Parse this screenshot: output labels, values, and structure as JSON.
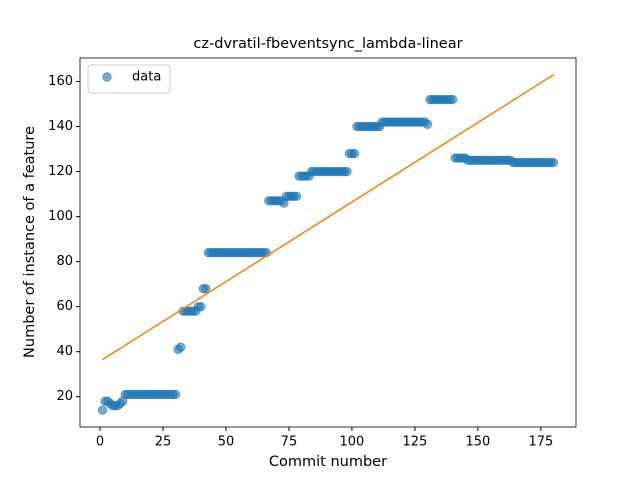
{
  "chart_data": {
    "type": "scatter",
    "title": "cz-dvratil-fbeventsync_lambda-linear",
    "xlabel": "Commit number",
    "ylabel": "Number of instance of a feature",
    "xlim": [
      -7.95,
      188.95
    ],
    "ylim": [
      6.55,
      170.45
    ],
    "xticks": [
      0,
      25,
      50,
      75,
      100,
      125,
      150,
      175
    ],
    "yticks": [
      20,
      40,
      60,
      80,
      100,
      120,
      140,
      160
    ],
    "legend": "upper left",
    "series": [
      {
        "name": "data",
        "type": "scatter",
        "color": "#1f77b4",
        "x": [
          1,
          2,
          3,
          4,
          5,
          6,
          7,
          8,
          9,
          10,
          11,
          12,
          13,
          14,
          15,
          16,
          17,
          18,
          19,
          20,
          21,
          22,
          23,
          24,
          25,
          26,
          27,
          28,
          29,
          30,
          31,
          32,
          33,
          34,
          35,
          36,
          37,
          38,
          39,
          40,
          41,
          42,
          43,
          44,
          45,
          46,
          47,
          48,
          49,
          50,
          51,
          52,
          53,
          54,
          55,
          56,
          57,
          58,
          59,
          60,
          61,
          62,
          63,
          64,
          65,
          66,
          67,
          68,
          69,
          70,
          71,
          72,
          73,
          74,
          75,
          76,
          77,
          78,
          79,
          80,
          81,
          82,
          83,
          84,
          85,
          86,
          87,
          88,
          89,
          90,
          91,
          92,
          93,
          94,
          95,
          96,
          97,
          98,
          99,
          100,
          101,
          102,
          103,
          104,
          105,
          106,
          107,
          108,
          109,
          110,
          111,
          112,
          113,
          114,
          115,
          116,
          117,
          118,
          119,
          120,
          121,
          122,
          123,
          124,
          125,
          126,
          127,
          128,
          129,
          130,
          131,
          132,
          133,
          134,
          135,
          136,
          137,
          138,
          139,
          140,
          141,
          142,
          143,
          144,
          145,
          146,
          147,
          148,
          149,
          150,
          151,
          152,
          153,
          154,
          155,
          156,
          157,
          158,
          159,
          160,
          161,
          162,
          163,
          164,
          165,
          166,
          167,
          168,
          169,
          170,
          171,
          172,
          173,
          174,
          175,
          176,
          177,
          178,
          179,
          180
        ],
        "values": [
          14,
          18,
          18,
          17,
          16,
          16,
          16,
          17,
          18,
          21,
          21,
          21,
          21,
          21,
          21,
          21,
          21,
          21,
          21,
          21,
          21,
          21,
          21,
          21,
          21,
          21,
          21,
          21,
          21,
          21,
          41,
          42,
          58,
          58,
          58,
          58,
          58,
          58,
          60,
          60,
          68,
          68,
          84,
          84,
          84,
          84,
          84,
          84,
          84,
          84,
          84,
          84,
          84,
          84,
          84,
          84,
          84,
          84,
          84,
          84,
          84,
          84,
          84,
          84,
          84,
          84,
          107,
          107,
          107,
          107,
          107,
          107,
          106,
          109,
          109,
          109,
          109,
          109,
          118,
          118,
          118,
          118,
          118,
          120,
          120,
          120,
          120,
          120,
          120,
          120,
          120,
          120,
          120,
          120,
          120,
          120,
          120,
          120,
          128,
          128,
          128,
          140,
          140,
          140,
          140,
          140,
          140,
          140,
          140,
          140,
          140,
          142,
          142,
          142,
          142,
          142,
          142,
          142,
          142,
          142,
          142,
          142,
          142,
          142,
          142,
          142,
          142,
          142,
          142,
          141,
          152,
          152,
          152,
          152,
          152,
          152,
          152,
          152,
          152,
          152,
          126,
          126,
          126,
          126,
          126,
          125,
          125,
          125,
          125,
          125,
          125,
          125,
          125,
          125,
          125,
          125,
          125,
          125,
          125,
          125,
          125,
          125,
          125,
          124,
          124,
          124,
          124,
          124,
          124,
          124,
          124,
          124,
          124,
          124,
          124,
          124,
          124,
          124,
          124,
          124
        ]
      },
      {
        "type": "line",
        "color": "#ff7f0e",
        "x": [
          1,
          180
        ],
        "values": [
          36.5,
          163
        ]
      }
    ]
  }
}
